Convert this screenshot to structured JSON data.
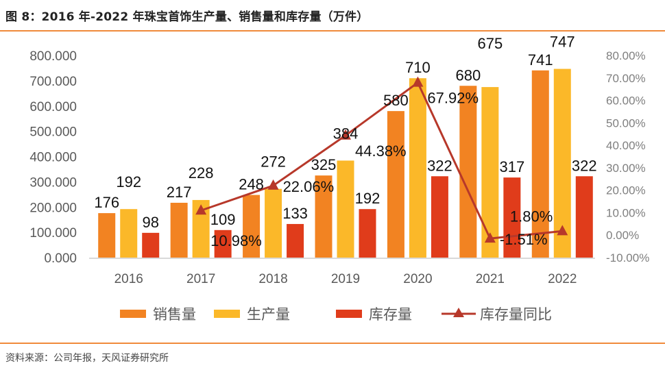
{
  "header": {
    "title": "图 8：2016 年-2022 年珠宝首饰生产量、销售量和库存量（万件）"
  },
  "footer": {
    "source": "资料来源：公司年报，天风证券研究所"
  },
  "chart_data": {
    "type": "bar",
    "title": "2016 年-2022 年珠宝首饰生产量、销售量和库存量（万件）",
    "categories": [
      "2016",
      "2017",
      "2018",
      "2019",
      "2020",
      "2021",
      "2022"
    ],
    "series": [
      {
        "name": "销售量",
        "type": "bar",
        "axis": "left",
        "color": "#f28322",
        "values": [
          176,
          217,
          248,
          325,
          580,
          680,
          741
        ]
      },
      {
        "name": "生产量",
        "type": "bar",
        "axis": "left",
        "color": "#fbb829",
        "values": [
          192,
          228,
          272,
          384,
          710,
          675,
          747
        ]
      },
      {
        "name": "库存量",
        "type": "bar",
        "axis": "left",
        "color": "#e03c1b",
        "values": [
          98,
          109,
          133,
          192,
          322,
          317,
          322
        ]
      },
      {
        "name": "库存量同比",
        "type": "line",
        "axis": "right",
        "color": "#b7382a",
        "marker": "triangle",
        "x": [
          "2017",
          "2018",
          "2019",
          "2020",
          "2021",
          "2022"
        ],
        "values": [
          10.98,
          22.06,
          44.38,
          67.92,
          -1.51,
          1.8
        ],
        "labels": [
          "10.98%",
          "22.06%",
          "44.38%",
          "67.92%",
          "-1.51%",
          "1.80%"
        ]
      }
    ],
    "y_left": {
      "ylim": [
        0,
        800
      ],
      "ticks": [
        "0.000",
        "100.000",
        "200.000",
        "300.000",
        "400.000",
        "500.000",
        "600.000",
        "700.000",
        "800.000"
      ],
      "tick_values": [
        0,
        100,
        200,
        300,
        400,
        500,
        600,
        700,
        800
      ]
    },
    "y_right": {
      "ylim": [
        -10,
        80
      ],
      "ticks": [
        "-10.00%",
        "0.00%",
        "10.00%",
        "20.00%",
        "30.00%",
        "40.00%",
        "50.00%",
        "60.00%",
        "70.00%",
        "80.00%"
      ],
      "tick_values": [
        -10,
        0,
        10,
        20,
        30,
        40,
        50,
        60,
        70,
        80
      ]
    },
    "xlabel": "",
    "ylabel": "",
    "grid": false,
    "legend": {
      "placement": "bottom",
      "entries": [
        "销售量",
        "生产量",
        "库存量",
        "库存量同比"
      ]
    }
  }
}
